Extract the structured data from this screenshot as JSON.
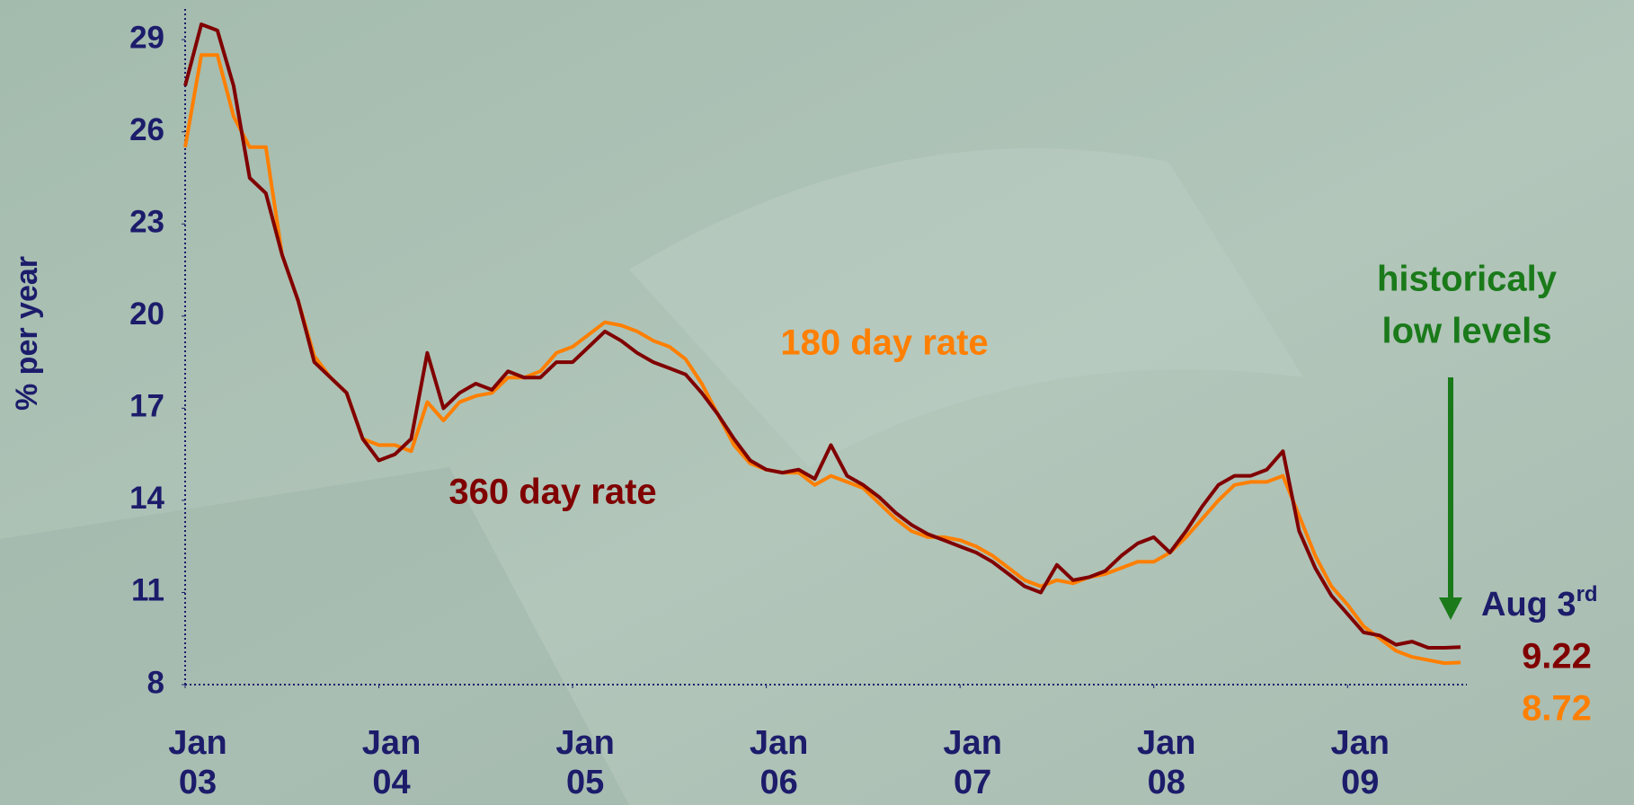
{
  "chart_data": {
    "type": "line",
    "y_label": "% per year",
    "x": [
      "2003-01",
      "2003-02",
      "2003-03",
      "2003-04",
      "2003-05",
      "2003-06",
      "2003-07",
      "2003-08",
      "2003-09",
      "2003-10",
      "2003-11",
      "2003-12",
      "2004-01",
      "2004-02",
      "2004-03",
      "2004-04",
      "2004-05",
      "2004-06",
      "2004-07",
      "2004-08",
      "2004-09",
      "2004-10",
      "2004-11",
      "2004-12",
      "2005-01",
      "2005-02",
      "2005-03",
      "2005-04",
      "2005-05",
      "2005-06",
      "2005-07",
      "2005-08",
      "2005-09",
      "2005-10",
      "2005-11",
      "2005-12",
      "2006-01",
      "2006-02",
      "2006-03",
      "2006-04",
      "2006-05",
      "2006-06",
      "2006-07",
      "2006-08",
      "2006-09",
      "2006-10",
      "2006-11",
      "2006-12",
      "2007-01",
      "2007-02",
      "2007-03",
      "2007-04",
      "2007-05",
      "2007-06",
      "2007-07",
      "2007-08",
      "2007-09",
      "2007-10",
      "2007-11",
      "2007-12",
      "2008-01",
      "2008-02",
      "2008-03",
      "2008-04",
      "2008-05",
      "2008-06",
      "2008-07",
      "2008-08",
      "2008-09",
      "2008-10",
      "2008-11",
      "2008-12",
      "2009-01",
      "2009-02",
      "2009-03",
      "2009-04",
      "2009-05",
      "2009-06",
      "2009-07",
      "2009-08"
    ],
    "series": [
      {
        "name": "360 day rate",
        "color": "#800000",
        "values": [
          27.5,
          29.5,
          29.3,
          27.5,
          24.5,
          24,
          22,
          20.5,
          18.5,
          18,
          17.5,
          16,
          15.3,
          15.5,
          16,
          18.8,
          17,
          17.5,
          17.8,
          17.6,
          18.2,
          18,
          18,
          18.5,
          18.5,
          19,
          19.5,
          19.2,
          18.8,
          18.5,
          18.3,
          18.1,
          17.5,
          16.8,
          16,
          15.3,
          15,
          14.9,
          15,
          14.7,
          15.8,
          14.8,
          14.5,
          14.1,
          13.6,
          13.2,
          12.9,
          12.7,
          12.5,
          12.3,
          12,
          11.6,
          11.2,
          11,
          11.9,
          11.4,
          11.5,
          11.7,
          12.2,
          12.6,
          12.8,
          12.3,
          13,
          13.8,
          14.5,
          14.8,
          14.8,
          15,
          15.6,
          13,
          11.8,
          10.9,
          10.3,
          9.7,
          9.6,
          9.3,
          9.4,
          9.2,
          9.2,
          9.22
        ]
      },
      {
        "name": "180 day rate",
        "color": "#ff7f00",
        "values": [
          25.5,
          28.5,
          28.5,
          26.5,
          25.5,
          25.5,
          22,
          20.5,
          18.7,
          18,
          17.5,
          16,
          15.8,
          15.8,
          15.6,
          17.2,
          16.6,
          17.2,
          17.4,
          17.5,
          18,
          18,
          18.2,
          18.8,
          19,
          19.4,
          19.8,
          19.7,
          19.5,
          19.2,
          19,
          18.6,
          17.8,
          16.8,
          15.8,
          15.2,
          15,
          14.9,
          14.9,
          14.5,
          14.8,
          14.6,
          14.4,
          13.9,
          13.4,
          13,
          12.8,
          12.8,
          12.7,
          12.5,
          12.2,
          11.8,
          11.4,
          11.2,
          11.4,
          11.3,
          11.5,
          11.6,
          11.8,
          12,
          12,
          12.3,
          12.8,
          13.4,
          14,
          14.5,
          14.6,
          14.6,
          14.8,
          13.5,
          12.2,
          11.2,
          10.6,
          9.9,
          9.5,
          9.1,
          8.9,
          8.8,
          8.7,
          8.72
        ]
      }
    ],
    "xlim": [
      "2003-01",
      "2009-08"
    ],
    "xticks": [
      {
        "value": "2003-01",
        "label": "Jan 03"
      },
      {
        "value": "2004-01",
        "label": "Jan 04"
      },
      {
        "value": "2005-01",
        "label": "Jan 05"
      },
      {
        "value": "2006-01",
        "label": "Jan 06"
      },
      {
        "value": "2007-01",
        "label": "Jan 07"
      },
      {
        "value": "2008-01",
        "label": "Jan 08"
      },
      {
        "value": "2009-01",
        "label": "Jan 09"
      }
    ],
    "ylim": [
      8,
      30
    ],
    "yticks": [
      8,
      11,
      14,
      17,
      20,
      23,
      26,
      29
    ],
    "axis_color": "#1c1c6b",
    "annotations": {
      "note": [
        "historicaly",
        "low levels"
      ],
      "note_color": "#1a7a1a",
      "date": {
        "text": "Aug 3",
        "sup": "rd"
      }
    }
  }
}
